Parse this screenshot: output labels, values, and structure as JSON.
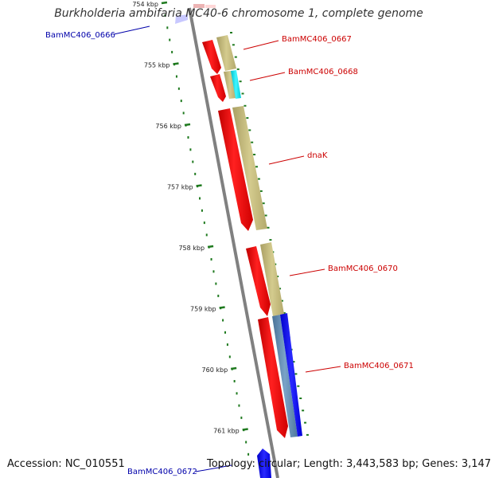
{
  "title": "Burkholderia ambifaria MC40-6 chromosome 1, complete genome",
  "footer": {
    "accession": "Accession: NC_010551",
    "topology": "Topology: circular; Length: 3,443,583 bp; Genes: 3,147"
  },
  "ruler": {
    "unit": "kbp",
    "ticks": [
      {
        "label": "754 kbp",
        "kbp": 754
      },
      {
        "label": "755 kbp",
        "kbp": 755
      },
      {
        "label": "756 kbp",
        "kbp": 756
      },
      {
        "label": "757 kbp",
        "kbp": 757
      },
      {
        "label": "758 kbp",
        "kbp": 758
      },
      {
        "label": "759 kbp",
        "kbp": 759
      },
      {
        "label": "760 kbp",
        "kbp": 760
      },
      {
        "label": "761 kbp",
        "kbp": 761
      }
    ]
  },
  "genes": [
    {
      "label": "BamMC406_0666",
      "label_color": "#0000aa",
      "side": "left"
    },
    {
      "label": "BamMC406_0667",
      "label_color": "#cc0000",
      "side": "right"
    },
    {
      "label": "BamMC406_0668",
      "label_color": "#cc0000",
      "side": "right"
    },
    {
      "label": "dnaK",
      "label_color": "#cc0000",
      "side": "right"
    },
    {
      "label": "BamMC406_0670",
      "label_color": "#cc0000",
      "side": "right"
    },
    {
      "label": "BamMC406_0671",
      "label_color": "#cc0000",
      "side": "right"
    },
    {
      "label": "BamMC406_0672",
      "label_color": "#0000aa",
      "side": "left"
    }
  ],
  "colors": {
    "backbone": "#808080",
    "forward_cds": "#ff0000",
    "reverse_cds": "#1a1aff",
    "cog_khaki": "#c8bf80",
    "cog_cyan": "#00e5ee",
    "cog_steel": "#5b86b0",
    "tick": "#1f7a1f"
  }
}
